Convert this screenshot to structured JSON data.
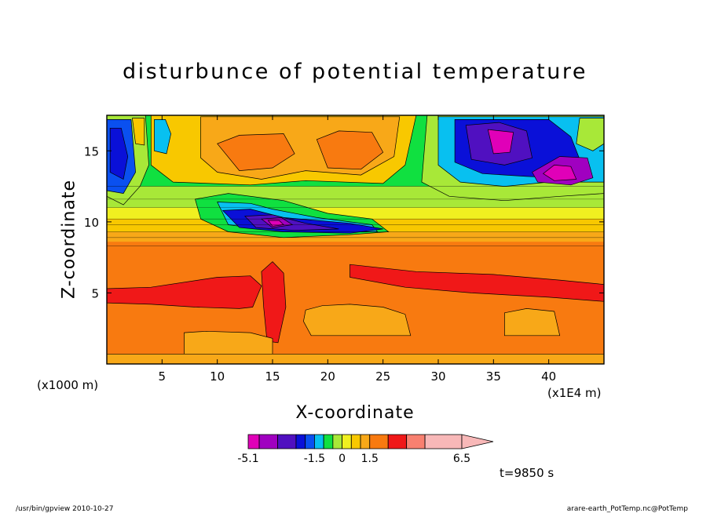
{
  "title": "disturbunce of potential temperature",
  "footer_left": "/usr/bin/gpview   2010-10-27",
  "footer_right": "arare-earth_PotTemp.nc@PotTemp",
  "time_label": "t=9850 s",
  "chart_data": {
    "type": "heatmap",
    "title": "disturbunce of potential temperature",
    "xlabel": "X-coordinate",
    "ylabel": "Z-coordinate",
    "x_unit_label": "(x1E4 m)",
    "y_unit_label": "(x1000 m)",
    "xlim": [
      0,
      45
    ],
    "ylim": [
      0,
      17.5
    ],
    "xticks": [
      5,
      10,
      15,
      20,
      25,
      30,
      35,
      40
    ],
    "yticks": [
      5,
      10,
      15
    ],
    "contour_levels": [
      -5.1,
      -4.5,
      -3.5,
      -2.5,
      -2.0,
      -1.5,
      -1.0,
      -0.5,
      0,
      0.5,
      1.0,
      1.5,
      2.5,
      3.5,
      4.5,
      6.5
    ],
    "level_colors": [
      "#e000b8",
      "#a000c0",
      "#5010c0",
      "#0a10d8",
      "#0a50f0",
      "#08c0f0",
      "#10e040",
      "#a8e838",
      "#f0f020",
      "#f8c800",
      "#f8a818",
      "#f87a10",
      "#f01818",
      "#f88070",
      "#f8b8b8"
    ],
    "colorbar": {
      "labels": [
        "-5.1",
        "-1.5",
        "0",
        "1.5",
        "6.5"
      ]
    },
    "annotations": [
      "t=9850 s"
    ]
  }
}
